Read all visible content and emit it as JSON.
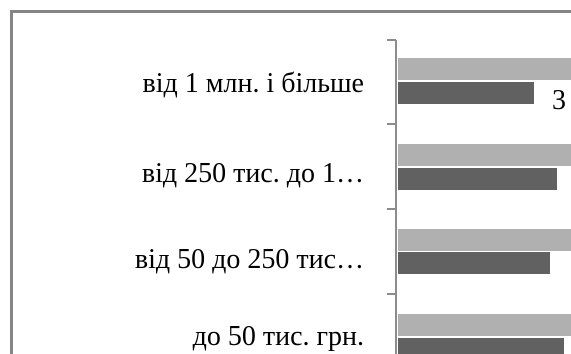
{
  "chart_data": {
    "type": "bar",
    "orientation": "horizontal",
    "categories": [
      "від 1 млн. і більше",
      "від 250 тис. до 1…",
      "від 50 до 250 тис…",
      "до 50 тис. грн."
    ],
    "series": [
      {
        "color": "#b0b0b0",
        "values": [
          null,
          null,
          null,
          null
        ]
      },
      {
        "color": "#616161",
        "values": [
          null,
          null,
          null,
          null
        ]
      }
    ],
    "data_labels": [
      "3"
    ]
  }
}
